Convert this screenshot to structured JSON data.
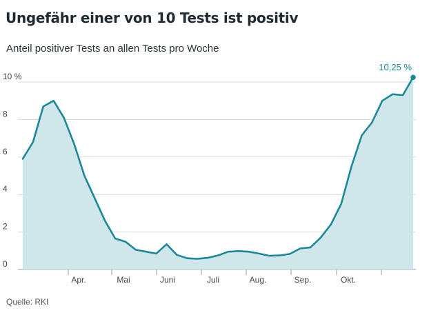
{
  "title": "Ungefähr einer von 10 Tests ist positiv",
  "subtitle": "Anteil positiver Tests an allen Tests pro Woche",
  "source": "Quelle: RKI",
  "colors": {
    "line": "#1b8799",
    "area": "#cfe6ea",
    "grid": "#d9d9d9",
    "axis": "#999999"
  },
  "chart_data": {
    "type": "area",
    "title": "Ungefähr einer von 10 Tests ist positiv",
    "subtitle": "Anteil positiver Tests an allen Tests pro Woche",
    "ylabel": "",
    "xlabel": "",
    "y_unit": "%",
    "ylim": [
      0,
      10.8
    ],
    "y_ticks": [
      0,
      2,
      4,
      6,
      8,
      10
    ],
    "y_tick_labels": [
      "0",
      "2",
      "4",
      "6",
      "8",
      "10 %"
    ],
    "x_tick_labels": [
      "Apr.",
      "Mai",
      "Juni",
      "Juli",
      "Aug.",
      "Sep.",
      "Okt."
    ],
    "grid": true,
    "end_label": "10,25 %",
    "series": [
      {
        "values": [
          5.9,
          6.8,
          8.7,
          9.0,
          8.1,
          6.7,
          5.0,
          3.8,
          2.6,
          1.65,
          1.48,
          1.05,
          0.95,
          0.85,
          1.35,
          0.78,
          0.6,
          0.57,
          0.62,
          0.75,
          0.95,
          0.98,
          0.95,
          0.85,
          0.73,
          0.75,
          0.83,
          1.12,
          1.18,
          1.7,
          2.4,
          3.5,
          5.5,
          7.15,
          7.85,
          9.0,
          9.35,
          9.3,
          10.25
        ]
      }
    ]
  }
}
